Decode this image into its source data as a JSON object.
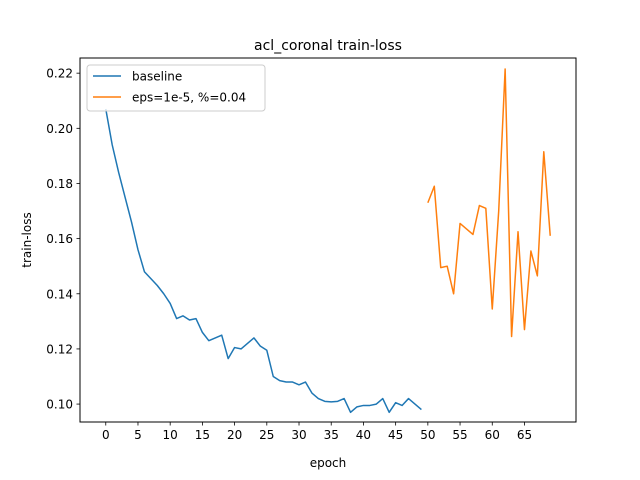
{
  "chart_data": {
    "type": "line",
    "title": "acl_coronal train-loss",
    "xlabel": "epoch",
    "ylabel": "train-loss",
    "xlim": [
      -4,
      73
    ],
    "ylim": [
      0.0935,
      0.2255
    ],
    "xticks": [
      0,
      5,
      10,
      15,
      20,
      25,
      30,
      35,
      40,
      45,
      50,
      55,
      60,
      65
    ],
    "yticks": [
      0.1,
      0.12,
      0.14,
      0.16,
      0.18,
      0.2,
      0.22
    ],
    "ytick_labels": [
      "0.10",
      "0.12",
      "0.14",
      "0.16",
      "0.18",
      "0.20",
      "0.22"
    ],
    "grid": false,
    "legend_position": "upper-left",
    "series": [
      {
        "name": "baseline",
        "color": "#1f77b4",
        "x": [
          0,
          1,
          2,
          3,
          4,
          5,
          6,
          7,
          8,
          9,
          10,
          11,
          12,
          13,
          14,
          15,
          16,
          17,
          18,
          19,
          20,
          21,
          22,
          23,
          24,
          25,
          26,
          27,
          28,
          29,
          30,
          31,
          32,
          33,
          34,
          35,
          36,
          37,
          38,
          39,
          40,
          41,
          42,
          43,
          44,
          45,
          46,
          47,
          48,
          49
        ],
        "values": [
          0.207,
          0.194,
          0.184,
          0.175,
          0.166,
          0.156,
          0.148,
          0.1455,
          0.143,
          0.14,
          0.1365,
          0.131,
          0.132,
          0.1305,
          0.131,
          0.126,
          0.123,
          0.124,
          0.125,
          0.1165,
          0.1205,
          0.12,
          0.122,
          0.124,
          0.121,
          0.1195,
          0.11,
          0.1085,
          0.108,
          0.108,
          0.107,
          0.108,
          0.104,
          0.102,
          0.101,
          0.1008,
          0.101,
          0.102,
          0.097,
          0.099,
          0.0995,
          0.0995,
          0.1,
          0.102,
          0.097,
          0.1005,
          0.0995,
          0.102,
          0.1,
          0.098
        ]
      },
      {
        "name": "eps=1e-5, %=0.04",
        "color": "#ff7f0e",
        "x": [
          50,
          51,
          52,
          53,
          54,
          55,
          56,
          57,
          58,
          59,
          60,
          61,
          62,
          63,
          64,
          65,
          66,
          67,
          68,
          69
        ],
        "values": [
          0.173,
          0.179,
          0.1495,
          0.15,
          0.14,
          0.1655,
          0.1635,
          0.1615,
          0.172,
          0.171,
          0.1345,
          0.17,
          0.2215,
          0.1245,
          0.1625,
          0.127,
          0.1555,
          0.1465,
          0.1915,
          0.161
        ]
      }
    ]
  }
}
